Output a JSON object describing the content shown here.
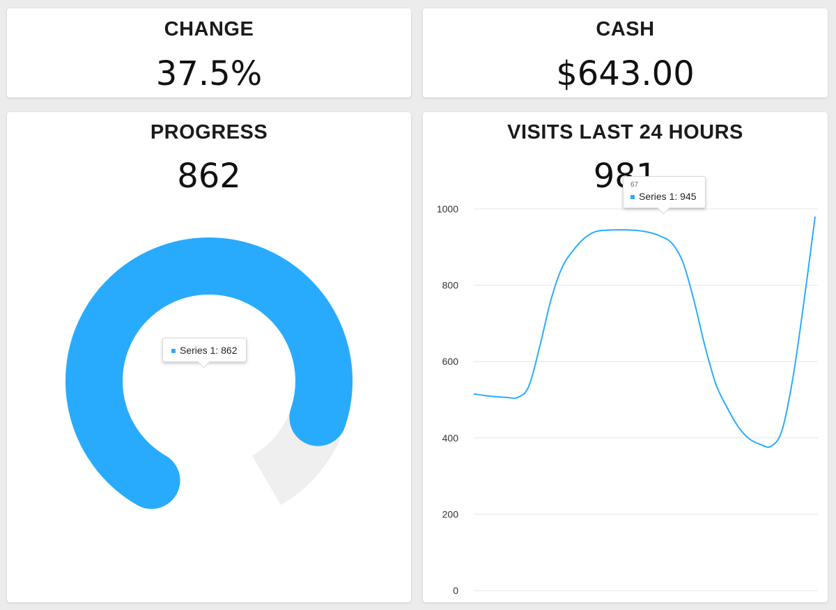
{
  "colors": {
    "background": "#ececec",
    "card": "#ffffff",
    "accent": "#29abfd",
    "track": "#efefef",
    "grid": "#e6e6e6"
  },
  "change": {
    "title": "CHANGE",
    "value": "37.5%"
  },
  "cash": {
    "title": "CASH",
    "value": "$643.00"
  },
  "progress": {
    "title": "PROGRESS",
    "value": "862",
    "tooltip": {
      "label": "Series 1: 862"
    }
  },
  "visits": {
    "title": "VISITS LAST 24 HOURS",
    "value": "981",
    "tooltip": {
      "header": "67",
      "label": "Series 1: 945"
    }
  },
  "chart_data": [
    {
      "type": "gauge",
      "series": [
        {
          "name": "Series 1",
          "value": 862
        }
      ],
      "max": 1000
    },
    {
      "type": "line",
      "series": [
        {
          "name": "Series 1",
          "values": [
            515,
            511,
            508,
            506,
            506,
            535,
            640,
            760,
            845,
            890,
            922,
            940,
            944,
            945,
            945,
            943,
            938,
            928,
            910,
            860,
            760,
            640,
            540,
            480,
            430,
            398,
            383,
            378,
            420,
            560,
            760,
            980
          ]
        }
      ],
      "ylim": [
        0,
        1000
      ],
      "yticks": [
        0,
        200,
        400,
        600,
        800,
        1000
      ],
      "grid": true
    }
  ]
}
